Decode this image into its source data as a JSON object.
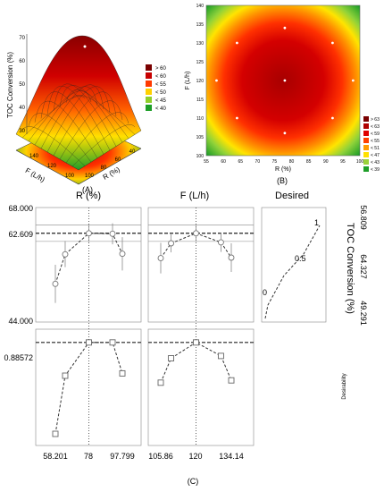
{
  "panels": {
    "a_label": "(A)",
    "b_label": "(B)",
    "c_label": "(C)"
  },
  "chart_data": [
    {
      "panel": "A",
      "type": "surface",
      "zlabel": "TOC Conversion (%)",
      "xlabel": "R (%)",
      "ylabel": "F (L/h)",
      "z_ticks": [
        "70",
        "60",
        "50",
        "40",
        "30"
      ],
      "x_ticks": [
        "100",
        "80",
        "60",
        "40"
      ],
      "y_ticks": [
        "140",
        "120",
        "100"
      ],
      "legend": [
        "> 60",
        "< 60",
        "< 55",
        "< 50",
        "< 45",
        "< 40"
      ],
      "legend_colors": [
        "#7a0000",
        "#c80000",
        "#ff3a00",
        "#ffd000",
        "#8fcf2a",
        "#1e9e28"
      ]
    },
    {
      "panel": "B",
      "type": "heatmap",
      "xlabel": "R (%)",
      "ylabel": "F (L/h)",
      "xlim": [
        55,
        100
      ],
      "ylim": [
        100,
        140
      ],
      "x_ticks": [
        "55",
        "60",
        "65",
        "70",
        "75",
        "80",
        "85",
        "90",
        "95",
        "100"
      ],
      "y_ticks": [
        "100",
        "105",
        "110",
        "115",
        "120",
        "125",
        "130",
        "135",
        "140"
      ],
      "center": {
        "x": 78,
        "y": 120
      },
      "design_points": [
        {
          "x": 64,
          "y": 130
        },
        {
          "x": 92,
          "y": 130
        },
        {
          "x": 64,
          "y": 110
        },
        {
          "x": 92,
          "y": 110
        },
        {
          "x": 58,
          "y": 120
        },
        {
          "x": 98,
          "y": 120
        },
        {
          "x": 78,
          "y": 106
        },
        {
          "x": 78,
          "y": 134
        },
        {
          "x": 78,
          "y": 120
        }
      ],
      "legend": [
        "> 63",
        "< 63",
        "< 59",
        "< 55",
        "< 51",
        "< 47",
        "< 43",
        "< 39"
      ],
      "legend_colors": [
        "#7a0000",
        "#b00000",
        "#e00000",
        "#ff4000",
        "#ff9a00",
        "#ffe000",
        "#9ad23a",
        "#1e9e28"
      ]
    },
    {
      "panel": "C",
      "type": "profiler",
      "col_titles": [
        "R (%)",
        "F (L/h)",
        "Desired"
      ],
      "toc_ylim": [
        44.0,
        68.0
      ],
      "toc_ticks": [
        "68.000",
        "62.609",
        "44.000"
      ],
      "toc_optimum": 62.609,
      "toc_side_ticks": [
        "64.327",
        "56.809",
        "49.291"
      ],
      "toc_side_label": "TOC Conversion (%)",
      "desirability_tick": "0.88572",
      "desirability_label": "Desirability",
      "desired_labels": [
        "1",
        "0.5",
        "0"
      ],
      "r_ticks": [
        "58.201",
        "78",
        "97.799"
      ],
      "f_ticks": [
        "105.86",
        "120",
        "134.14"
      ],
      "r_toc": [
        {
          "x": 58.201,
          "y": 52.0,
          "lo": 48.0,
          "hi": 56.0
        },
        {
          "x": 64.0,
          "y": 58.2,
          "lo": 55.5,
          "hi": 61.0
        },
        {
          "x": 78.0,
          "y": 62.6,
          "lo": 60.8,
          "hi": 64.4
        },
        {
          "x": 92.0,
          "y": 62.5,
          "lo": 60.3,
          "hi": 64.7
        },
        {
          "x": 97.799,
          "y": 58.3,
          "lo": 54.8,
          "hi": 61.8
        }
      ],
      "f_toc": [
        {
          "x": 105.86,
          "y": 57.4,
          "lo": 54.2,
          "hi": 60.6
        },
        {
          "x": 110.0,
          "y": 60.5,
          "lo": 58.6,
          "hi": 62.4
        },
        {
          "x": 120.0,
          "y": 62.6,
          "lo": 60.9,
          "hi": 64.3
        },
        {
          "x": 130.0,
          "y": 60.7,
          "lo": 58.7,
          "hi": 62.7
        },
        {
          "x": 134.14,
          "y": 57.5,
          "lo": 54.5,
          "hi": 60.5
        }
      ],
      "r_des": [
        {
          "x": 58.201,
          "y": 0.1
        },
        {
          "x": 64.0,
          "y": 0.6
        },
        {
          "x": 78.0,
          "y": 0.886
        },
        {
          "x": 92.0,
          "y": 0.886
        },
        {
          "x": 97.799,
          "y": 0.62
        }
      ],
      "f_des": [
        {
          "x": 105.86,
          "y": 0.54
        },
        {
          "x": 110.0,
          "y": 0.75
        },
        {
          "x": 120.0,
          "y": 0.886
        },
        {
          "x": 130.0,
          "y": 0.77
        },
        {
          "x": 134.14,
          "y": 0.56
        }
      ]
    }
  ]
}
